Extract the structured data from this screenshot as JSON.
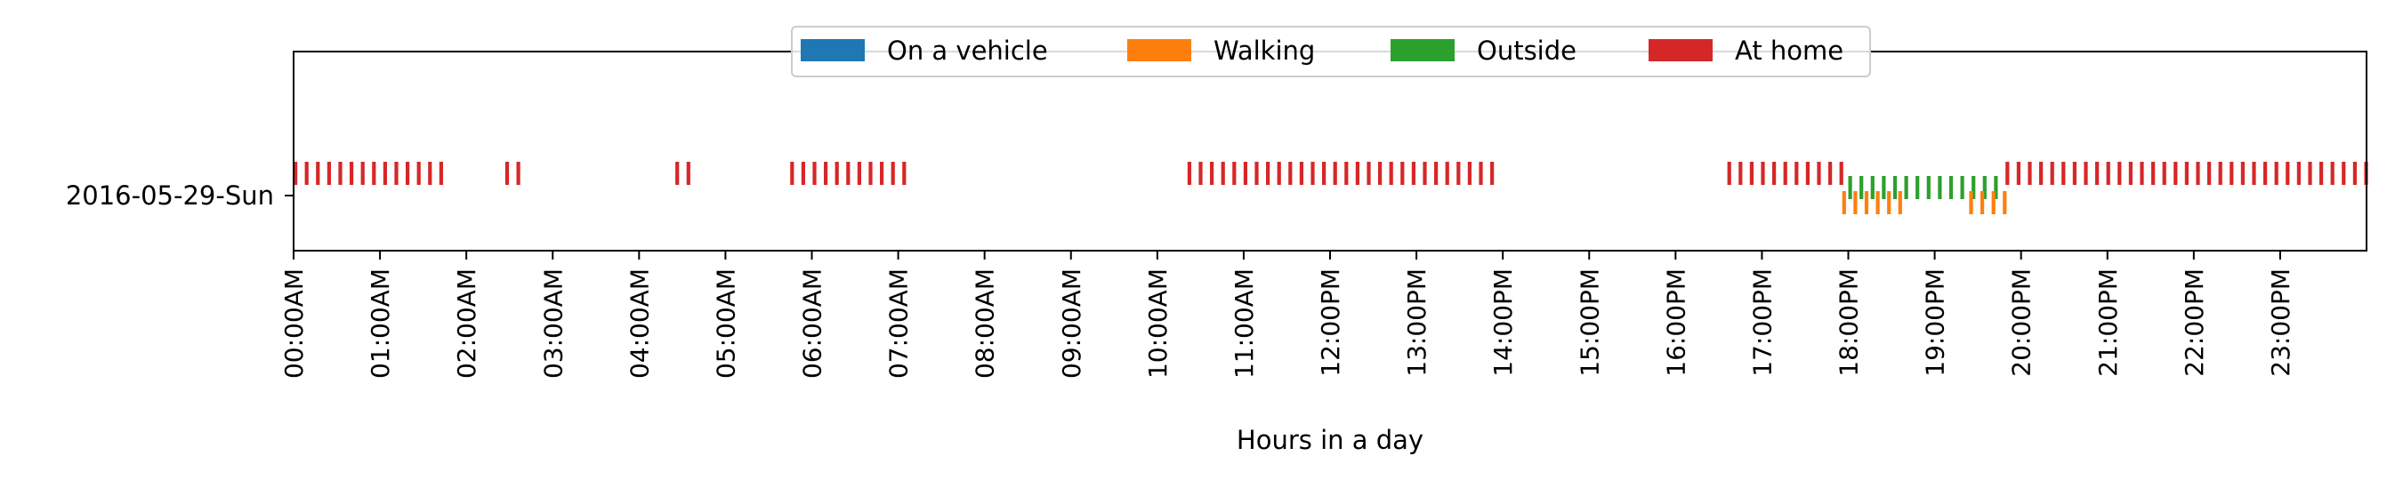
{
  "chart_data": {
    "type": "timeline",
    "title": "",
    "xlabel": "Hours in a day",
    "ylabel": "",
    "y_categories": [
      "2016-05-29-Sun"
    ],
    "x_unit": "hours",
    "xlim": [
      0,
      24
    ],
    "x_ticks": [
      0,
      1,
      2,
      3,
      4,
      5,
      6,
      7,
      8,
      9,
      10,
      11,
      12,
      13,
      14,
      15,
      16,
      17,
      18,
      19,
      20,
      21,
      22,
      23
    ],
    "x_tick_labels": [
      "00:00AM",
      "01:00AM",
      "02:00AM",
      "03:00AM",
      "04:00AM",
      "05:00AM",
      "06:00AM",
      "07:00AM",
      "08:00AM",
      "09:00AM",
      "10:00AM",
      "11:00AM",
      "12:00PM",
      "13:00PM",
      "14:00PM",
      "15:00PM",
      "16:00PM",
      "17:00PM",
      "18:00PM",
      "19:00PM",
      "20:00PM",
      "21:00PM",
      "22:00PM",
      "23:00PM"
    ],
    "legend_position": "top-center",
    "grid": false,
    "series": [
      {
        "name": "On a vehicle",
        "color": "#1f77b4",
        "intervals": []
      },
      {
        "name": "Walking",
        "color": "#ff7f0e",
        "intervals": [
          [
            17.93,
            18.65
          ],
          [
            19.4,
            19.8
          ]
        ]
      },
      {
        "name": "Outside",
        "color": "#2ca02c",
        "intervals": [
          [
            18.0,
            19.8
          ]
        ]
      },
      {
        "name": "At home",
        "color": "#d62728",
        "intervals": [
          [
            0.0,
            1.72
          ],
          [
            2.45,
            2.58
          ],
          [
            4.42,
            4.67
          ],
          [
            5.75,
            7.17
          ],
          [
            10.35,
            13.88
          ],
          [
            16.6,
            17.95
          ],
          [
            19.82,
            24.0
          ]
        ]
      }
    ]
  }
}
